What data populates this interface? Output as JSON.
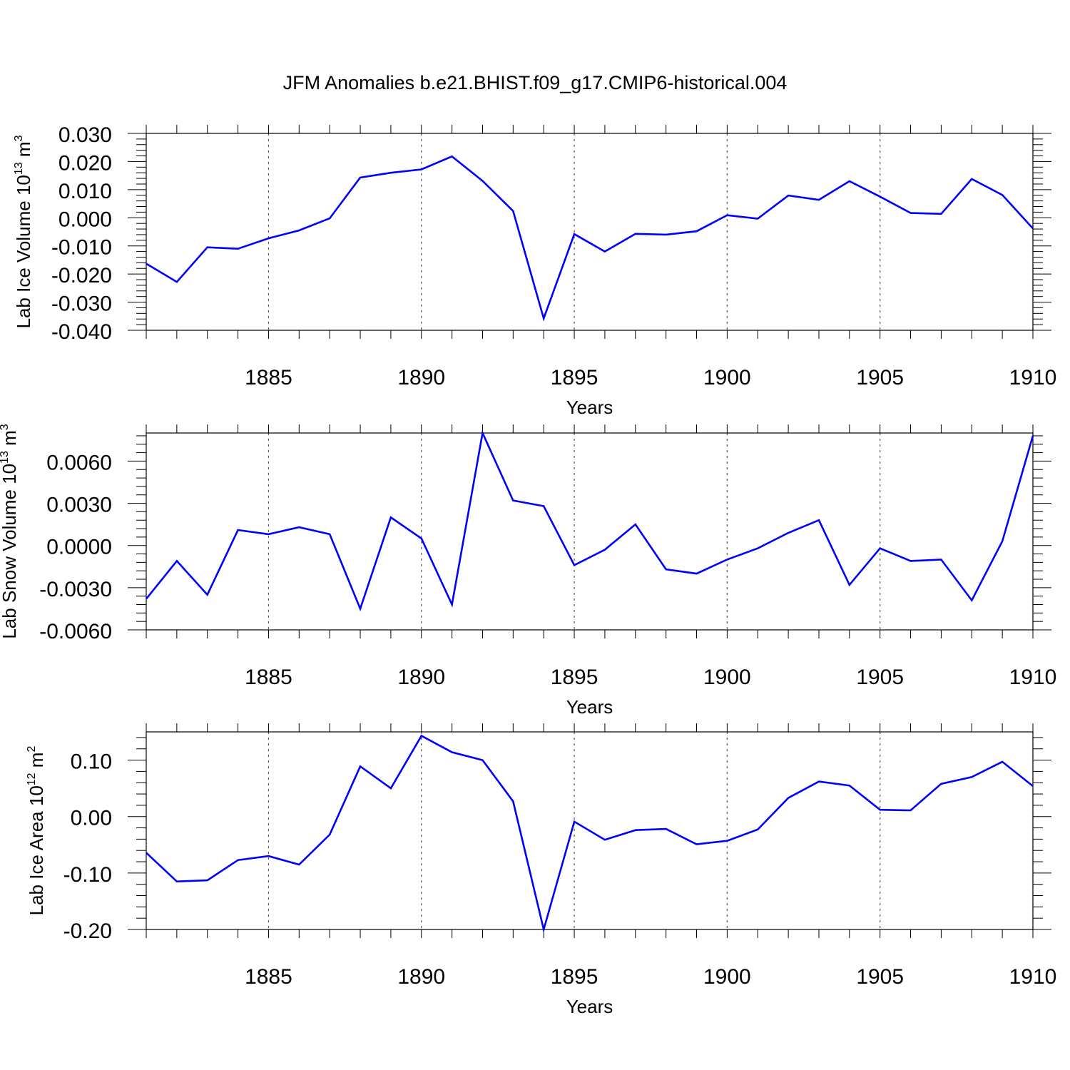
{
  "title": "JFM Anomalies b.e21.BHIST.f09_g17.CMIP6-historical.004",
  "chart_data": [
    {
      "type": "line",
      "ylabel_main": "Lab Ice Volume 10",
      "ylabel_sup": "13",
      "ylabel_unit": "m",
      "ylabel_unit_sup": "3",
      "xlabel": "Years",
      "xlim": [
        1881,
        1910
      ],
      "ylim": [
        -0.04,
        0.03
      ],
      "ytick_values": [
        -0.04,
        -0.03,
        -0.02,
        -0.01,
        0.0,
        0.01,
        0.02,
        0.03
      ],
      "ytick_labels": [
        "-0.040",
        "-0.030",
        "-0.020",
        "-0.010",
        "0.000",
        "0.010",
        "0.020",
        "0.030"
      ],
      "xtick_values": [
        1885,
        1890,
        1895,
        1900,
        1905,
        1910
      ],
      "xtick_labels": [
        "1885",
        "1890",
        "1895",
        "1900",
        "1905",
        "1910"
      ],
      "color": "#0000ff",
      "series": [
        {
          "name": "Lab Ice Volume",
          "x": [
            1881,
            1882,
            1883,
            1884,
            1885,
            1886,
            1887,
            1888,
            1889,
            1890,
            1891,
            1892,
            1893,
            1894,
            1895,
            1896,
            1897,
            1898,
            1899,
            1900,
            1901,
            1902,
            1903,
            1904,
            1905,
            1906,
            1907,
            1908,
            1909,
            1910
          ],
          "values": [
            -0.0163,
            -0.0228,
            -0.0105,
            -0.011,
            -0.0073,
            -0.0045,
            -0.0002,
            0.0143,
            0.016,
            0.0172,
            0.0218,
            0.0131,
            0.0024,
            -0.0358,
            -0.0058,
            -0.012,
            -0.0057,
            -0.006,
            -0.0048,
            0.0009,
            -0.0003,
            0.0079,
            0.0064,
            0.013,
            0.0075,
            0.0017,
            0.0014,
            0.0138,
            0.0081,
            -0.0038
          ]
        }
      ]
    },
    {
      "type": "line",
      "ylabel_main": "Lab Snow Volume 10",
      "ylabel_sup": "13",
      "ylabel_unit": "m",
      "ylabel_unit_sup": "3",
      "xlabel": "Years",
      "xlim": [
        1881,
        1910
      ],
      "ylim": [
        -0.006,
        0.008
      ],
      "ytick_values": [
        -0.006,
        -0.003,
        0.0,
        0.003,
        0.006
      ],
      "ytick_labels": [
        "-0.0060",
        "-0.0030",
        "0.0000",
        "0.0030",
        "0.0060"
      ],
      "xtick_values": [
        1885,
        1890,
        1895,
        1900,
        1905,
        1910
      ],
      "xtick_labels": [
        "1885",
        "1890",
        "1895",
        "1900",
        "1905",
        "1910"
      ],
      "color": "#0000ff",
      "series": [
        {
          "name": "Lab Snow Volume",
          "x": [
            1881,
            1882,
            1883,
            1884,
            1885,
            1886,
            1887,
            1888,
            1889,
            1890,
            1891,
            1892,
            1893,
            1894,
            1895,
            1896,
            1897,
            1898,
            1899,
            1900,
            1901,
            1902,
            1903,
            1904,
            1905,
            1906,
            1907,
            1908,
            1909,
            1910
          ],
          "values": [
            -0.0038,
            -0.0011,
            -0.0035,
            0.0011,
            0.0008,
            0.0013,
            0.0008,
            -0.0045,
            0.002,
            0.0005,
            -0.0042,
            0.008,
            0.0032,
            0.0028,
            -0.0014,
            -0.0003,
            0.0015,
            -0.0017,
            -0.002,
            -0.001,
            -0.0002,
            0.0009,
            0.0018,
            -0.0028,
            -0.0002,
            -0.0011,
            -0.001,
            -0.0039,
            0.0003,
            0.0078
          ]
        }
      ]
    },
    {
      "type": "line",
      "ylabel_main": "Lab Ice Area 10",
      "ylabel_sup": "12",
      "ylabel_unit": "m",
      "ylabel_unit_sup": "2",
      "xlabel": "Years",
      "xlim": [
        1881,
        1910
      ],
      "ylim": [
        -0.2,
        0.15
      ],
      "ytick_values": [
        -0.2,
        -0.1,
        0.0,
        0.1
      ],
      "ytick_labels": [
        "-0.20",
        "-0.10",
        "0.00",
        "0.10"
      ],
      "xtick_values": [
        1885,
        1890,
        1895,
        1900,
        1905,
        1910
      ],
      "xtick_labels": [
        "1885",
        "1890",
        "1895",
        "1900",
        "1905",
        "1910"
      ],
      "color": "#0000ff",
      "series": [
        {
          "name": "Lab Ice Area",
          "x": [
            1881,
            1882,
            1883,
            1884,
            1885,
            1886,
            1887,
            1888,
            1889,
            1890,
            1891,
            1892,
            1893,
            1894,
            1895,
            1896,
            1897,
            1898,
            1899,
            1900,
            1901,
            1902,
            1903,
            1904,
            1905,
            1906,
            1907,
            1908,
            1909,
            1910
          ],
          "values": [
            -0.064,
            -0.115,
            -0.113,
            -0.077,
            -0.07,
            -0.085,
            -0.032,
            0.089,
            0.05,
            0.143,
            0.114,
            0.1,
            0.027,
            -0.2,
            -0.009,
            -0.041,
            -0.024,
            -0.022,
            -0.049,
            -0.043,
            -0.023,
            0.033,
            0.062,
            0.055,
            0.012,
            0.011,
            0.058,
            0.07,
            0.097,
            0.054
          ]
        }
      ]
    }
  ]
}
